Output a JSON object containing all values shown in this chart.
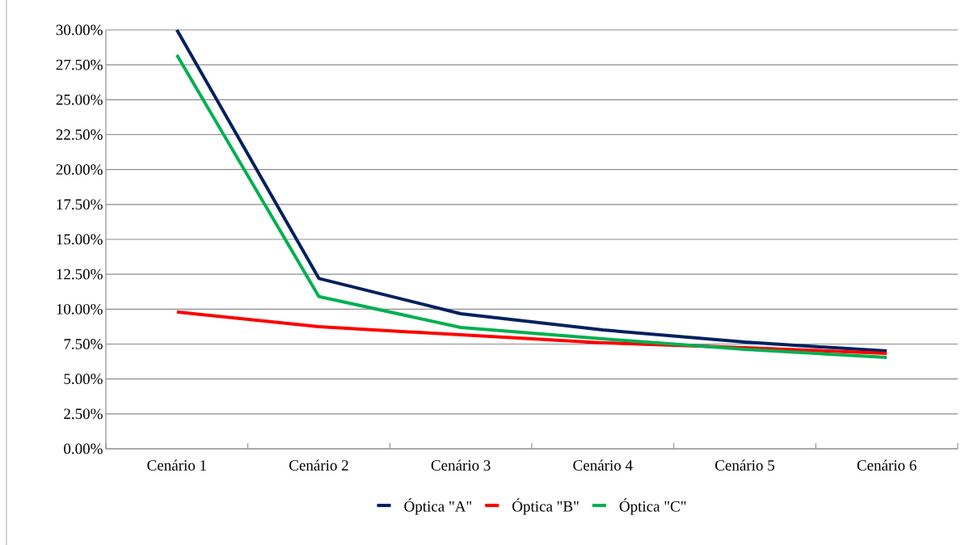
{
  "chart_data": {
    "type": "line",
    "categories": [
      "Cenário 1",
      "Cenário 2",
      "Cenário 3",
      "Cenário 4",
      "Cenário 5",
      "Cenário 6"
    ],
    "series": [
      {
        "name": "Óptica \"A\"",
        "color": "#002060",
        "values": [
          30.0,
          12.2,
          9.67,
          8.51,
          7.64,
          7.0
        ]
      },
      {
        "name": "Óptica \"B\"",
        "color": "#ff0000",
        "values": [
          9.8,
          8.74,
          8.16,
          7.59,
          7.24,
          6.83
        ]
      },
      {
        "name": "Óptica \"C\"",
        "color": "#00b050",
        "values": [
          28.2,
          10.9,
          8.69,
          7.87,
          7.12,
          6.54
        ]
      }
    ],
    "ylim": [
      0,
      30
    ],
    "yticks": [
      {
        "value": 0,
        "label": "0.00%"
      },
      {
        "value": 2.5,
        "label": "2.50%"
      },
      {
        "value": 5,
        "label": "5.00%"
      },
      {
        "value": 7.5,
        "label": "7.50%"
      },
      {
        "value": 10,
        "label": "10.00%"
      },
      {
        "value": 12.5,
        "label": "12.50%"
      },
      {
        "value": 15,
        "label": "15.00%"
      },
      {
        "value": 17.5,
        "label": "17.50%"
      },
      {
        "value": 20,
        "label": "20.00%"
      },
      {
        "value": 22.5,
        "label": "22.50%"
      },
      {
        "value": 25,
        "label": "25.00%"
      },
      {
        "value": 27.5,
        "label": "27.50%"
      },
      {
        "value": 30,
        "label": "30.00%"
      }
    ],
    "grid": "y",
    "legend": "bottom",
    "marker": "none",
    "line_style": "solid"
  }
}
